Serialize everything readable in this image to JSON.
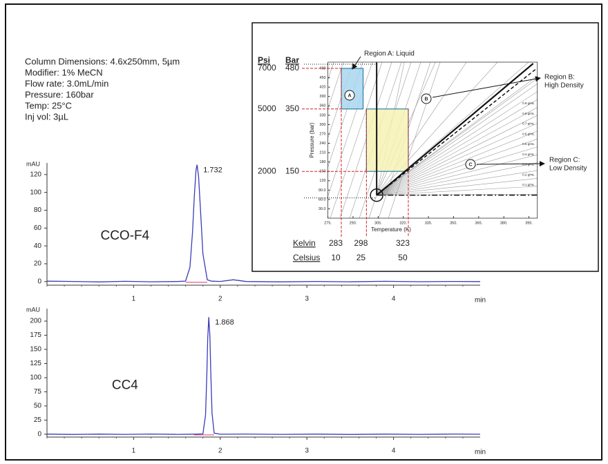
{
  "method": [
    "Column Dimensions: 4.6x250mm, 5µm",
    "Modifier: 1% MeCN",
    "Flow rate: 3.0mL/min",
    "Pressure: 160bar",
    "Temp: 25°C",
    "Inj vol: 3µL"
  ],
  "chart_data": [
    {
      "type": "line",
      "sample": "CCO-F4",
      "peak_label": "1.732",
      "xlabel": "min",
      "ylabel": "mAU",
      "x": [
        0,
        0.3,
        0.6,
        0.9,
        1.2,
        1.5,
        1.6,
        1.65,
        1.68,
        1.7,
        1.72,
        1.732,
        1.75,
        1.77,
        1.8,
        1.85,
        1.9,
        2.0,
        2.15,
        2.3,
        2.7,
        3.1,
        3.5,
        3.9,
        4.3,
        4.7,
        5.0
      ],
      "series": [
        {
          "color": "#3a3ab8",
          "values": [
            0.5,
            0.2,
            -0.4,
            0.3,
            -0.2,
            0.1,
            0.6,
            16,
            56,
            95,
            125,
            131,
            118,
            83,
            31,
            2,
            0.5,
            0.2,
            2,
            0.1,
            -0.3,
            0.2,
            -0.2,
            0.3,
            -0.1,
            0.2,
            0
          ]
        }
      ],
      "xlim": [
        0,
        5
      ],
      "ylim": [
        -4,
        133
      ],
      "xticks": [
        1,
        2,
        3,
        4
      ],
      "yticks": [
        0,
        20,
        40,
        60,
        80,
        100,
        120
      ]
    },
    {
      "type": "line",
      "sample": "CC4",
      "peak_label": "1.868",
      "xlabel": "min",
      "ylabel": "mAU",
      "x": [
        0,
        0.3,
        0.6,
        0.9,
        1.2,
        1.5,
        1.7,
        1.8,
        1.83,
        1.845,
        1.855,
        1.868,
        1.88,
        1.89,
        1.905,
        1.93,
        2.0,
        2.3,
        2.7,
        3.1,
        3.5,
        3.9,
        4.3,
        4.7,
        5.0
      ],
      "series": [
        {
          "color": "#3a3ab8",
          "values": [
            0.3,
            -0.4,
            0.2,
            -0.3,
            0.4,
            -0.2,
            0.1,
            0.6,
            34,
            107,
            168,
            207,
            173,
            113,
            37,
            2,
            0,
            0.4,
            -0.3,
            0.2,
            -0.4,
            0.3,
            -0.2,
            0.4,
            0
          ]
        }
      ],
      "xlim": [
        0,
        5
      ],
      "ylim": [
        -5,
        222
      ],
      "xticks": [
        1,
        2,
        3,
        4
      ],
      "yticks": [
        0,
        25,
        50,
        75,
        100,
        125,
        150,
        175,
        200
      ]
    },
    {
      "type": "phase-diagram",
      "xlabel": "Temperature (K)",
      "ylabel": "Pressure (bar)",
      "xlim": [
        275,
        400
      ],
      "ylim": [
        0,
        500
      ],
      "xticks": [
        {
          "value": 275,
          "label": "275."
        },
        {
          "value": 290,
          "label": "290."
        },
        {
          "value": 305,
          "label": "305."
        },
        {
          "value": 320,
          "label": "320."
        },
        {
          "value": 335,
          "label": "335."
        },
        {
          "value": 350,
          "label": "350."
        },
        {
          "value": 365,
          "label": "365."
        },
        {
          "value": 380,
          "label": "380."
        },
        {
          "value": 395,
          "label": "395."
        }
      ],
      "yticks": [
        {
          "value": 30,
          "label": "30.0"
        },
        {
          "value": 60,
          "label": "60.0"
        },
        {
          "value": 90,
          "label": "90.0"
        },
        120,
        150,
        180,
        210,
        240,
        270,
        300,
        330,
        360,
        390,
        420,
        450,
        480
      ],
      "critical_point": [
        304.1,
        73.8
      ],
      "boxes": [
        {
          "xlim": [
            283,
            296
          ],
          "ylim": [
            350,
            480
          ],
          "color": "#a9d6ee"
        },
        {
          "xlim": [
            298,
            323
          ],
          "ylim": [
            150,
            350
          ],
          "color": "#f7f2b4"
        }
      ],
      "psi_label": "Psi",
      "bar_label": "Bar",
      "psi": [
        7000,
        5000,
        2000
      ],
      "bar": [
        480,
        350,
        150
      ],
      "kelvin_label": "Kelvin",
      "celsius_label": "Celsius",
      "kelvin": [
        283,
        298,
        323
      ],
      "celsius": [
        10,
        25,
        50
      ],
      "regions": [
        {
          "letter": "A",
          "lines": [
            "Region A: Liquid"
          ]
        },
        {
          "letter": "B",
          "lines": [
            "Region B:",
            "High Density"
          ]
        },
        {
          "letter": "C",
          "lines": [
            "Region C:",
            "Low Density"
          ]
        }
      ],
      "isolines": [
        "0.9 g/mL",
        "0.8 g/mL",
        "0.7 g/mL",
        "0.6 g/mL",
        "0.5 g/mL",
        "0.4 g/mL",
        "0.3 g/mL",
        "0.2 g/mL",
        "0.1 g/mL"
      ]
    }
  ]
}
